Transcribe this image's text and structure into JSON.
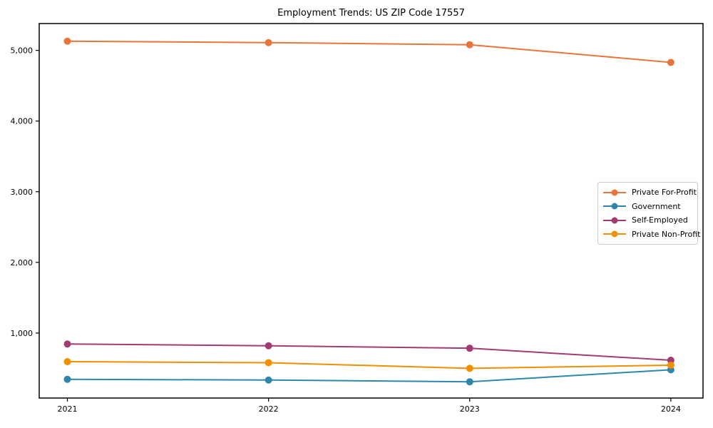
{
  "chart_data": {
    "type": "line",
    "title": "Employment Trends: US ZIP Code 17557",
    "x": [
      2021,
      2022,
      2023,
      2024
    ],
    "x_tick_labels": [
      "2021",
      "2022",
      "2023",
      "2024"
    ],
    "y_ticks": [
      1000,
      2000,
      3000,
      4000,
      5000
    ],
    "y_tick_labels": [
      "1,000",
      "2,000",
      "3,000",
      "4,000",
      "5,000"
    ],
    "xlim": [
      2020.86,
      2024.16
    ],
    "ylim": [
      80,
      5380
    ],
    "grid": false,
    "legend_position": "center right",
    "series": [
      {
        "name": "Private For-Profit",
        "color": "#E8743B",
        "values": [
          5130,
          5110,
          5080,
          4830
        ]
      },
      {
        "name": "Government",
        "color": "#2E86AB",
        "values": [
          345,
          335,
          310,
          480
        ]
      },
      {
        "name": "Self-Employed",
        "color": "#A23B72",
        "values": [
          845,
          820,
          785,
          615
        ]
      },
      {
        "name": "Private Non-Profit",
        "color": "#F18F01",
        "values": [
          595,
          580,
          500,
          545
        ]
      }
    ]
  }
}
